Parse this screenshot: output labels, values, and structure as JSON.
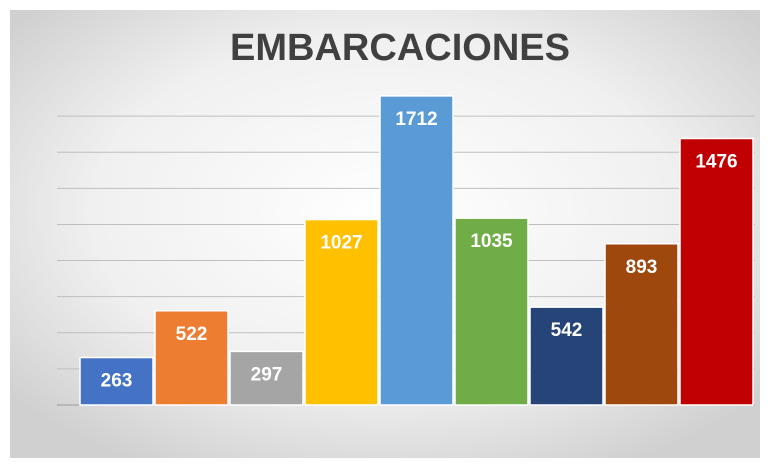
{
  "chart_data": {
    "type": "bar",
    "title": "EMBARCACIONES",
    "categories": [
      null,
      null,
      null,
      null,
      null,
      null,
      null,
      null,
      null
    ],
    "values": [
      263,
      522,
      297,
      1027,
      1712,
      1035,
      542,
      893,
      1476
    ],
    "colors": [
      "#4472c4",
      "#ed7d31",
      "#a5a5a5",
      "#ffc000",
      "#5b9bd5",
      "#70ad47",
      "#264478",
      "#9e480e",
      "#c00000"
    ],
    "ylim": [
      0,
      1800
    ],
    "yticks": [
      0,
      200,
      400,
      600,
      800,
      1000,
      1200,
      1400,
      1600
    ],
    "grid": true
  }
}
